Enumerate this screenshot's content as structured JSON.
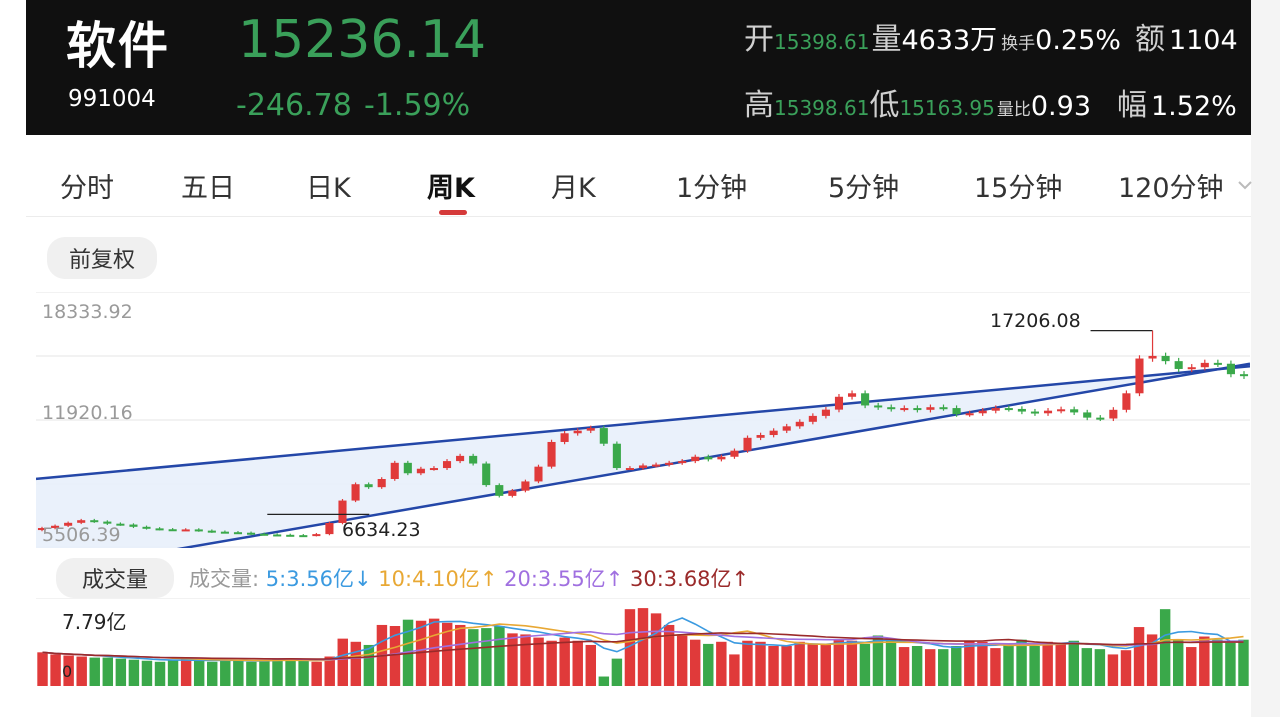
{
  "header": {
    "name": "软件",
    "code": "991004",
    "price": "15236.14",
    "change": "-246.78",
    "change_pct": "-1.59%",
    "open_label": "开",
    "open_value": "15398.61",
    "volume_label": "量",
    "volume_value": "4633万",
    "turnover_label": "换手",
    "turnover_value": "0.25%",
    "amount_label": "额",
    "amount_value": "1104",
    "high_label": "高",
    "high_value": "15398.61",
    "low_label": "低",
    "low_value": "15163.95",
    "ratio_label": "量比",
    "ratio_value": "0.93",
    "amp_label": "幅",
    "amp_value": "1.52%"
  },
  "tabs": [
    {
      "label": "分时",
      "active": false
    },
    {
      "label": "五日",
      "active": false
    },
    {
      "label": "日K",
      "active": false
    },
    {
      "label": "周K",
      "active": true
    },
    {
      "label": "月K",
      "active": false
    },
    {
      "label": "1分钟",
      "active": false
    },
    {
      "label": "5分钟",
      "active": false
    },
    {
      "label": "15分钟",
      "active": false
    },
    {
      "label": "120分钟",
      "active": false
    }
  ],
  "tab_more_icon": "chevron-down-icon",
  "adjust_button": "前复权",
  "chart": {
    "y_axis_labels": [
      "18333.92",
      "11920.16",
      "5506.39"
    ],
    "max_label": "17206.08",
    "min_label": "6634.23",
    "colors": {
      "up": "#e03a3a",
      "down": "#3aa84a",
      "channel": "#2447a8",
      "channel_fill": "#e8effb"
    }
  },
  "volume_panel": {
    "button": "成交量",
    "legend_title": "成交量:",
    "ma5": "5:3.56亿",
    "ma5_arrow": "↓",
    "ma10": "10:4.10亿",
    "ma10_arrow": "↑",
    "ma20": "20:3.55亿",
    "ma20_arrow": "↑",
    "ma30": "30:3.68亿",
    "ma30_arrow": "↑",
    "max_label": "7.79亿",
    "zero_label": "0",
    "colors": {
      "ma5": "#3b9ae0",
      "ma10": "#e8a834",
      "ma20": "#a070e0",
      "ma30": "#9a2a2a"
    }
  },
  "chart_data": {
    "type": "candlestick",
    "y_ticks": [
      18333.92,
      11920.16,
      5506.39
    ],
    "max_marker": 17206.08,
    "min_marker": 6634.23,
    "close_series": [
      5850,
      5980,
      6150,
      6300,
      6220,
      6100,
      6050,
      5920,
      5830,
      5780,
      5760,
      5770,
      5700,
      5640,
      5610,
      5580,
      5520,
      5480,
      5460,
      5440,
      5430,
      5500,
      6140,
      7430,
      8370,
      8200,
      8670,
      9600,
      9000,
      9260,
      9300,
      9700,
      10000,
      9560,
      8320,
      7700,
      8000,
      8530,
      9380,
      10800,
      11300,
      11450,
      11600,
      10700,
      9300,
      9300,
      9450,
      9500,
      9600,
      9700,
      9950,
      9800,
      9950,
      10300,
      11040,
      11200,
      11450,
      11700,
      11960,
      12300,
      12660,
      13400,
      13600,
      12900,
      12800,
      12700,
      12750,
      12650,
      12800,
      12750,
      12400,
      12450,
      12600,
      12750,
      12700,
      12550,
      12450,
      12600,
      12680,
      12500,
      12200,
      12150,
      12650,
      13600,
      15600,
      15750,
      15450,
      15000,
      15100,
      15350,
      15300,
      14700,
      14600
    ],
    "volume_series": [
      3.2,
      3.0,
      2.9,
      2.8,
      2.7,
      2.7,
      2.6,
      2.5,
      2.4,
      2.3,
      2.5,
      2.6,
      2.4,
      2.3,
      2.4,
      2.5,
      2.3,
      2.4,
      2.5,
      2.6,
      2.4,
      2.3,
      2.8,
      4.5,
      4.2,
      3.9,
      5.8,
      5.7,
      6.3,
      6.2,
      6.4,
      6.0,
      5.8,
      5.4,
      5.5,
      5.7,
      5.0,
      4.9,
      4.6,
      4.3,
      4.6,
      4.3,
      3.9,
      0.9,
      2.6,
      7.3,
      7.4,
      6.9,
      5.8,
      4.9,
      4.4,
      4.0,
      4.2,
      3.0,
      4.3,
      4.2,
      3.8,
      3.8,
      4.2,
      4.0,
      4.0,
      4.4,
      4.3,
      4.0,
      4.8,
      4.3,
      3.7,
      3.8,
      3.5,
      3.5,
      3.8,
      4.3,
      4.2,
      3.6,
      3.9,
      4.4,
      3.8,
      4.2,
      4.0,
      4.3,
      3.6,
      3.5,
      3.0,
      3.4,
      5.6,
      4.9,
      7.3,
      4.4,
      3.7,
      4.7,
      4.4,
      4.1,
      4.4
    ]
  }
}
